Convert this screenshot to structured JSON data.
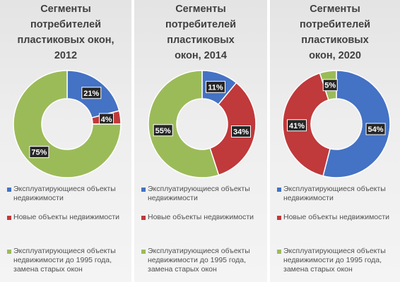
{
  "chart_data": [
    {
      "type": "pie",
      "title": "Сегменты\nпотребителей\nпластиковых окон,\n2012",
      "series": [
        {
          "name": "Эксплуатирующиеся объекты недвижимости",
          "value": 21,
          "label": "21%",
          "color": "#4472c4"
        },
        {
          "name": "Новые объекты недвижимости",
          "value": 4,
          "label": "4%",
          "color": "#c0393b"
        },
        {
          "name": "Эксплуатирующиеся объекты недвижимости до 1995 года, замена старых окон",
          "value": 75,
          "label": "75%",
          "color": "#9bbb59"
        }
      ]
    },
    {
      "type": "pie",
      "title": "Сегменты\nпотребителей\nпластиковых\nокон, 2014",
      "series": [
        {
          "name": "Эксплуатирующиеся объекты недвижимости",
          "value": 11,
          "label": "11%",
          "color": "#4472c4"
        },
        {
          "name": "Новые объекты недвижимости",
          "value": 34,
          "label": "34%",
          "color": "#c0393b"
        },
        {
          "name": "Эксплуатирующиеся объекты недвижимости до 1995 года, замена старых окон",
          "value": 55,
          "label": "55%",
          "color": "#9bbb59"
        }
      ]
    },
    {
      "type": "pie",
      "title": "Сегменты\nпотребителей\nпластиковых\nокон, 2020",
      "series": [
        {
          "name": "Эксплуатирующиеся объекты недвижимости",
          "value": 54,
          "label": "54%",
          "color": "#4472c4"
        },
        {
          "name": "Новые объекты недвижимости",
          "value": 41,
          "label": "41%",
          "color": "#c0393b"
        },
        {
          "name": "Эксплуатирующиеся объекты недвижимости до 1995 года, замена старых окон",
          "value": 5,
          "label": "5%",
          "color": "#9bbb59"
        }
      ]
    }
  ]
}
